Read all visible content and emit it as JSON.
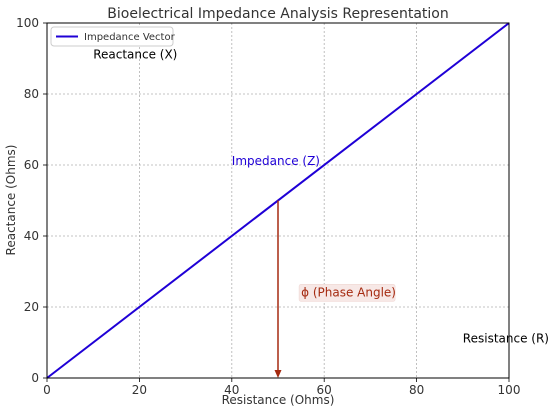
{
  "chart_data": {
    "type": "line",
    "title": "Bioelectrical Impedance Analysis Representation",
    "xlabel": "Resistance (Ohms)",
    "ylabel": "Reactance (Ohms)",
    "xlim": [
      0,
      100
    ],
    "ylim": [
      0,
      100
    ],
    "xticks": [
      "0",
      "20",
      "40",
      "60",
      "80",
      "100"
    ],
    "yticks": [
      "0",
      "20",
      "40",
      "60",
      "80",
      "100"
    ],
    "grid": true,
    "legend_position": "top-left",
    "series": [
      {
        "name": "Impedance Vector",
        "color": "#1f00d6",
        "x": [
          0,
          100
        ],
        "y": [
          0,
          100
        ]
      }
    ],
    "arrow": {
      "x": 50,
      "y_start": 50,
      "y_end": 0,
      "color": "#a52a10"
    },
    "annotations": [
      {
        "text": "Reactance (X)",
        "x": 10,
        "y": 90,
        "color": "#000000"
      },
      {
        "text": "Impedance (Z)",
        "x": 40,
        "y": 60,
        "color": "#1f00d6"
      },
      {
        "text": "ϕ (Phase Angle)",
        "x": 55,
        "y": 23,
        "color": "#a52a10",
        "box": true
      },
      {
        "text": "Resistance (R)",
        "x": 90,
        "y": 10,
        "color": "#000000"
      }
    ]
  }
}
